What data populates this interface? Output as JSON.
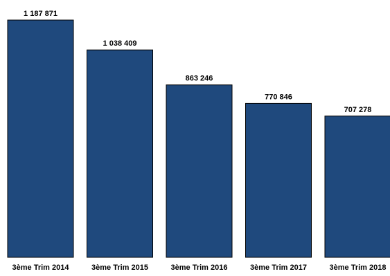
{
  "chart_data": {
    "type": "bar",
    "title": "",
    "xlabel": "",
    "ylabel": "",
    "categories": [
      "3ème Trim 2014",
      "3ème Trim 2015",
      "3ème Trim 2016",
      "3ème Trim 2017",
      "3ème Trim 2018"
    ],
    "values": [
      1187871,
      1038409,
      863246,
      770846,
      707278
    ],
    "value_labels": [
      "1 187 871",
      "1 038 409",
      "863 246",
      "770 846",
      "707 278"
    ],
    "ylim": [
      0,
      1187871
    ],
    "grid": false,
    "legend": "none",
    "colors": {
      "bar_fill": "#1f497d",
      "bar_stroke": "#000000",
      "text": "#000000"
    }
  }
}
